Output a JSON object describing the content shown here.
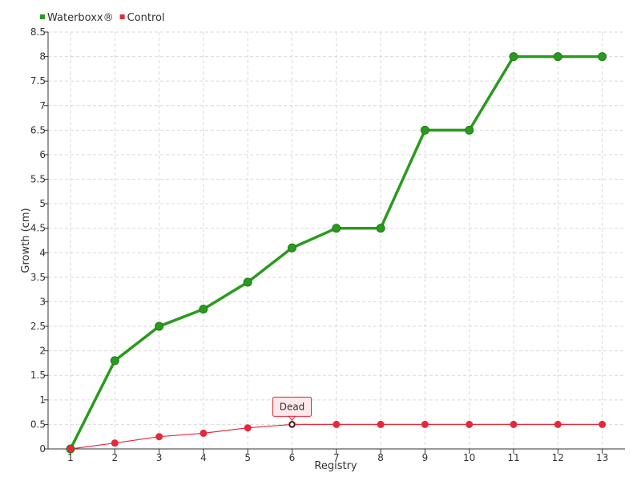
{
  "chart_data": {
    "type": "line",
    "title": "",
    "xlabel": "Registry",
    "ylabel": "Growth (cm)",
    "categories": [
      "1",
      "2",
      "3",
      "4",
      "5",
      "6",
      "7",
      "8",
      "9",
      "10",
      "11",
      "12",
      "13"
    ],
    "x_tick_labels": [
      "1",
      "2",
      "3",
      "4",
      "5",
      "6",
      "7",
      "8",
      "9",
      "10",
      "11",
      "12",
      "13"
    ],
    "y_tick_labels": [
      "0",
      "0.5",
      "1",
      "1.5",
      "2",
      "2.5",
      "3",
      "3.5",
      "4",
      "4.5",
      "5",
      "5.5",
      "6",
      "6.5",
      "7",
      "7.5",
      "8",
      "8.5"
    ],
    "ylim": [
      0,
      8.5
    ],
    "grid": true,
    "legend_position": "top-left",
    "series": [
      {
        "name": "Waterboxx®",
        "color": "#2a9a1e",
        "values": [
          0,
          1.8,
          2.5,
          2.85,
          3.4,
          4.1,
          4.5,
          4.5,
          6.5,
          6.5,
          8,
          8,
          8
        ]
      },
      {
        "name": "Control",
        "color": "#e8273a",
        "values": [
          0,
          0.12,
          0.25,
          0.32,
          0.43,
          0.5,
          0.5,
          0.5,
          0.5,
          0.5,
          0.5,
          0.5,
          0.5
        ]
      }
    ],
    "annotations": [
      {
        "text": "Dead",
        "series": "Control",
        "category": "6"
      }
    ],
    "colors": {
      "axis": "#333333",
      "grid": "#d9d9d9",
      "annotation_border": "#e8273a",
      "annotation_fill": "#fde8ea"
    }
  }
}
